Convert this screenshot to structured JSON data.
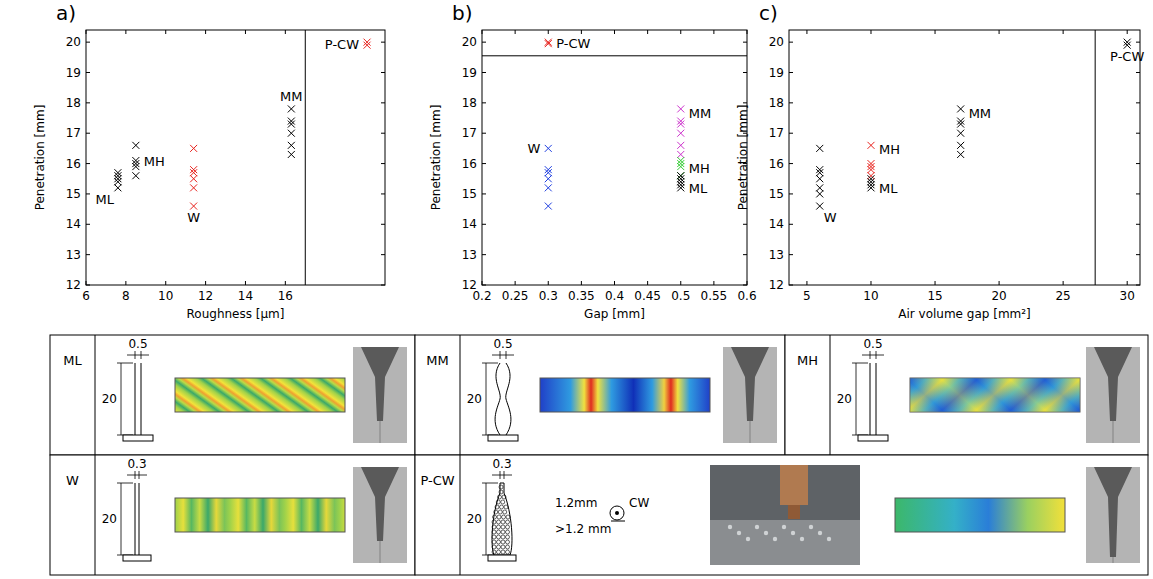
{
  "chart_data": [
    {
      "type": "scatter",
      "panel": "a)",
      "x_label": "Roughness [µm]",
      "y_label": "Penetration [mm]",
      "xlim": [
        6,
        21
      ],
      "xticks": [
        6,
        8,
        10,
        12,
        14,
        16
      ],
      "ylim": [
        12,
        20.4
      ],
      "yticks": [
        12,
        13,
        14,
        15,
        16,
        17,
        18,
        19,
        20
      ],
      "marker": "x",
      "divider_x": 17.0,
      "series": [
        {
          "name": "ML",
          "color": "#000000",
          "x": [
            7.6,
            7.6,
            7.6,
            7.6,
            7.6
          ],
          "values": [
            15.2,
            15.4,
            15.5,
            15.6,
            15.7
          ]
        },
        {
          "name": "MH",
          "color": "#000000",
          "x": [
            8.5,
            8.5,
            8.5,
            8.5,
            8.5
          ],
          "values": [
            15.6,
            15.9,
            16.0,
            16.1,
            16.6
          ]
        },
        {
          "name": "W",
          "color": "#e8231e",
          "x": [
            11.4,
            11.4,
            11.4,
            11.4,
            11.4,
            11.4
          ],
          "values": [
            14.6,
            15.2,
            15.5,
            15.7,
            15.8,
            16.5
          ]
        },
        {
          "name": "MM",
          "color": "#000000",
          "x": [
            16.3,
            16.3,
            16.3,
            16.3,
            16.3,
            16.3
          ],
          "values": [
            16.3,
            16.6,
            17.0,
            17.3,
            17.4,
            17.8
          ]
        },
        {
          "name": "P-CW",
          "color": "#e8231e",
          "x": [
            20.1,
            20.1
          ],
          "values": [
            19.9,
            20.0
          ]
        }
      ]
    },
    {
      "type": "scatter",
      "panel": "b)",
      "x_label": "Gap [mm]",
      "y_label": "Penetration [mm]",
      "xlim": [
        0.2,
        0.6
      ],
      "xticks": [
        0.2,
        0.25,
        0.3,
        0.35,
        0.4,
        0.45,
        0.5,
        0.55,
        0.6
      ],
      "ylim": [
        12,
        20.4
      ],
      "yticks": [
        12,
        13,
        14,
        15,
        16,
        17,
        18,
        19,
        20
      ],
      "marker": "x",
      "divider_y": 19.55,
      "series": [
        {
          "name": "P-CW",
          "color": "#e8231e",
          "x": [
            0.3,
            0.3
          ],
          "values": [
            19.95,
            20.0
          ]
        },
        {
          "name": "W",
          "color": "#1f3fe0",
          "x": [
            0.3,
            0.3,
            0.3,
            0.3,
            0.3,
            0.3
          ],
          "values": [
            14.6,
            15.2,
            15.5,
            15.7,
            15.8,
            16.5
          ]
        },
        {
          "name": "MM",
          "color": "#cc33cc",
          "x": [
            0.5,
            0.5,
            0.5,
            0.5,
            0.5,
            0.5
          ],
          "values": [
            16.3,
            16.6,
            17.0,
            17.3,
            17.4,
            17.8
          ]
        },
        {
          "name": "MH",
          "color": "#33cc33",
          "x": [
            0.5,
            0.5,
            0.5,
            0.5
          ],
          "values": [
            15.6,
            15.9,
            16.0,
            16.1
          ]
        },
        {
          "name": "ML",
          "color": "#000000",
          "x": [
            0.5,
            0.5,
            0.5,
            0.5,
            0.5
          ],
          "values": [
            15.2,
            15.3,
            15.4,
            15.5,
            15.6
          ]
        }
      ]
    },
    {
      "type": "scatter",
      "panel": "c)",
      "x_label": "Air volume gap [mm²]",
      "y_label": "Penetration [mm]",
      "xlim": [
        3.6,
        31
      ],
      "xticks": [
        5,
        10,
        15,
        20,
        25,
        30
      ],
      "ylim": [
        12,
        20.4
      ],
      "yticks": [
        12,
        13,
        14,
        15,
        16,
        17,
        18,
        19,
        20
      ],
      "marker": "x",
      "divider_x": 27.5,
      "series": [
        {
          "name": "W",
          "color": "#000000",
          "x": [
            6,
            6,
            6,
            6,
            6,
            6,
            6
          ],
          "values": [
            14.6,
            15.0,
            15.2,
            15.5,
            15.7,
            15.8,
            16.5
          ]
        },
        {
          "name": "MH",
          "color": "#e8231e",
          "x": [
            10,
            10,
            10,
            10,
            10
          ],
          "values": [
            15.6,
            15.8,
            15.9,
            16.0,
            16.6
          ]
        },
        {
          "name": "ML",
          "color": "#000000",
          "x": [
            10,
            10,
            10,
            10
          ],
          "values": [
            15.2,
            15.3,
            15.4,
            15.5
          ]
        },
        {
          "name": "MM",
          "color": "#000000",
          "x": [
            17,
            17,
            17,
            17,
            17,
            17
          ],
          "values": [
            16.3,
            16.6,
            17.0,
            17.3,
            17.4,
            17.8
          ]
        },
        {
          "name": "P-CW",
          "color": "#000000",
          "x": [
            30,
            30
          ],
          "values": [
            19.9,
            20.0
          ]
        }
      ]
    }
  ],
  "table": {
    "cells": [
      {
        "label": "ML",
        "gap": "0.5",
        "height": "20"
      },
      {
        "label": "MM",
        "gap": "0.5",
        "height": "20"
      },
      {
        "label": "MH",
        "gap": "0.5",
        "height": "20"
      },
      {
        "label": "W",
        "gap": "0.3",
        "height": "20"
      },
      {
        "label": "P-CW",
        "gap": "0.3",
        "height": "20",
        "wire": "1.2mm",
        "wire_type": "CW",
        "chip": ">1.2 mm"
      }
    ]
  }
}
